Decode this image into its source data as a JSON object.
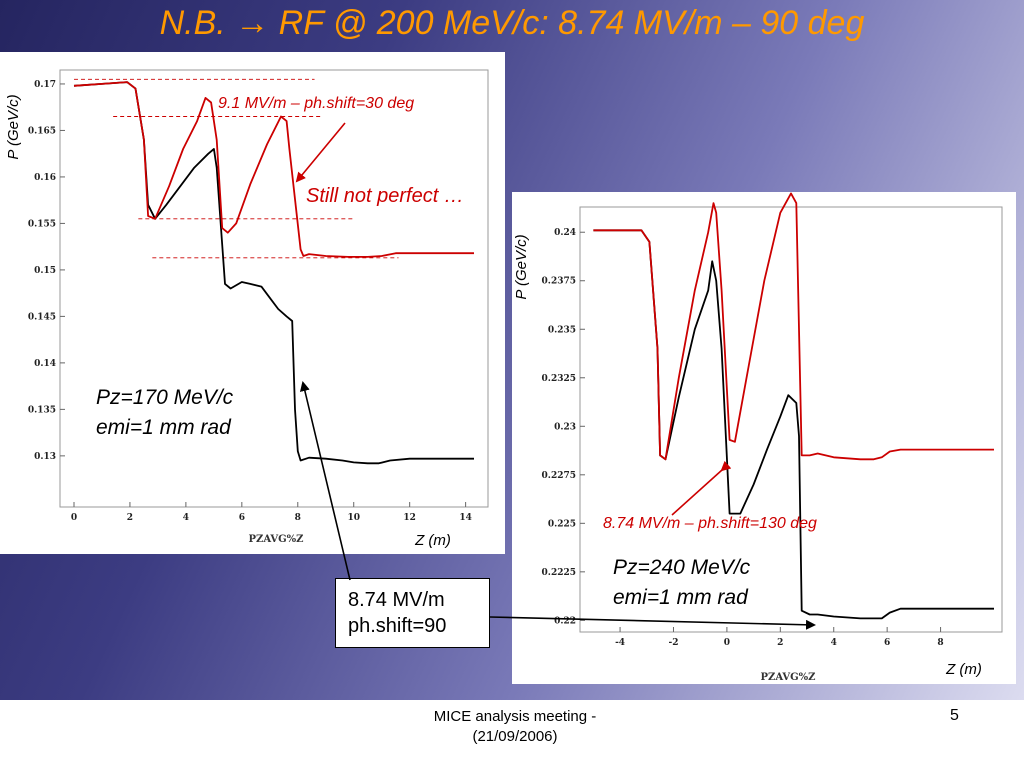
{
  "slide": {
    "title": "N.B. → RF @ 200 MeV/c: 8.74 MV/m – 90 deg",
    "footer_line1": "MICE analysis meeting -",
    "footer_line2": "(21/09/2006)",
    "page_number": "5"
  },
  "annotations": {
    "red_top": "9.1 MV/m – ph.shift=30 deg",
    "still_not_perfect": "Still not perfect …",
    "left_params_1": "Pz=170 MeV/c",
    "left_params_2": "emi=1 mm rad",
    "red_right": "8.74 MV/m – ph.shift=130 deg",
    "right_params_1": "Pz=240 MeV/c",
    "right_params_2": "emi=1 mm rad",
    "callout_1": "8.74 MV/m",
    "callout_2": "ph.shift=90"
  },
  "colors": {
    "title": "#ff9900",
    "red": "#cc0000",
    "black": "#000000"
  },
  "chart_data": [
    {
      "type": "line",
      "ylabel": "P (GeV/c)",
      "xlabel": "Z (m)",
      "axis_code": "PZAVG%Z",
      "xlim": [
        -0.5,
        14.8
      ],
      "ylim": [
        0.1245,
        0.1715
      ],
      "xticks": [
        0,
        2,
        4,
        6,
        8,
        10,
        12,
        14
      ],
      "yticks": [
        0.13,
        0.135,
        0.14,
        0.145,
        0.15,
        0.155,
        0.16,
        0.165,
        0.17
      ],
      "ytick_labels": [
        "0.13",
        "0.135",
        "0.14",
        "0.145",
        "0.15",
        "0.155",
        "0.16",
        "0.165",
        "0.17"
      ],
      "series": [
        {
          "color": "#000000",
          "x": [
            0,
            1,
            1.9,
            2.2,
            2.5,
            2.65,
            2.9,
            3.3,
            3.8,
            4.3,
            4.8,
            5.0,
            5.1,
            5.4,
            5.6,
            6.0,
            6.3,
            6.7,
            7.0,
            7.3,
            7.6,
            7.8,
            7.9,
            8.0,
            8.1,
            8.4,
            9.0,
            9.6,
            10.0,
            10.5,
            10.9,
            11.3,
            12.0,
            13.0,
            14.3
          ],
          "y": [
            0.1698,
            0.17,
            0.1702,
            0.1695,
            0.164,
            0.157,
            0.1555,
            0.157,
            0.159,
            0.161,
            0.1625,
            0.163,
            0.161,
            0.1485,
            0.148,
            0.1487,
            0.1485,
            0.1482,
            0.147,
            0.1458,
            0.145,
            0.1445,
            0.135,
            0.1305,
            0.1295,
            0.1298,
            0.1297,
            0.1295,
            0.1293,
            0.1292,
            0.1292,
            0.1295,
            0.1297,
            0.1297,
            0.1297
          ]
        },
        {
          "color": "#cc0000",
          "x": [
            0,
            1,
            1.9,
            2.2,
            2.5,
            2.65,
            2.9,
            3.4,
            3.9,
            4.4,
            4.7,
            4.9,
            5.1,
            5.3,
            5.5,
            5.8,
            6.3,
            6.9,
            7.4,
            7.6,
            7.7,
            8.1,
            8.2,
            8.4,
            9.0,
            9.8,
            10.5,
            11.0,
            11.5,
            12.5,
            14.3
          ],
          "y": [
            0.1698,
            0.17,
            0.1702,
            0.1695,
            0.164,
            0.1558,
            0.1555,
            0.159,
            0.163,
            0.166,
            0.1685,
            0.168,
            0.164,
            0.1545,
            0.154,
            0.155,
            0.1592,
            0.1635,
            0.1665,
            0.166,
            0.163,
            0.1522,
            0.1515,
            0.1517,
            0.1515,
            0.1514,
            0.1514,
            0.1515,
            0.1518,
            0.1518,
            0.1518
          ]
        }
      ],
      "reference_lines": [
        {
          "y": 0.1705,
          "x": [
            0,
            8.6
          ]
        },
        {
          "y": 0.1665,
          "x": [
            1.4,
            8.8
          ]
        },
        {
          "y": 0.1555,
          "x": [
            2.3,
            10
          ]
        },
        {
          "y": 0.1513,
          "x": [
            2.8,
            11.6
          ]
        }
      ]
    },
    {
      "type": "line",
      "ylabel": "P (GeV/c)",
      "xlabel": "Z (m)",
      "axis_code": "PZAVG%Z",
      "xlim": [
        -5.5,
        10.3
      ],
      "ylim": [
        0.2194,
        0.2413
      ],
      "xticks": [
        -4,
        -2,
        0,
        2,
        4,
        6,
        8
      ],
      "yticks": [
        0.22,
        0.2225,
        0.225,
        0.2275,
        0.23,
        0.2325,
        0.235,
        0.2375,
        0.24
      ],
      "ytick_labels": [
        "0.22",
        "0.2225",
        "0.225",
        "0.2275",
        "0.23",
        "0.2325",
        "0.235",
        "0.2375",
        "0.24"
      ],
      "series": [
        {
          "color": "#000000",
          "x": [
            -5,
            -4,
            -3.2,
            -2.9,
            -2.6,
            -2.5,
            -2.3,
            -1.8,
            -1.2,
            -0.7,
            -0.55,
            -0.4,
            -0.2,
            0.1,
            0.5,
            1.0,
            1.5,
            2.0,
            2.3,
            2.6,
            2.7,
            2.8,
            3.1,
            3.4,
            4.0,
            5.0,
            5.8,
            6.1,
            6.5,
            7.5,
            9.0,
            10.0
          ],
          "y": [
            0.2401,
            0.2401,
            0.2401,
            0.2395,
            0.234,
            0.2285,
            0.2283,
            0.2315,
            0.235,
            0.237,
            0.2385,
            0.2375,
            0.234,
            0.2255,
            0.2255,
            0.227,
            0.2288,
            0.2305,
            0.2316,
            0.2312,
            0.2295,
            0.2205,
            0.2203,
            0.2203,
            0.2202,
            0.2201,
            0.2201,
            0.2204,
            0.2206,
            0.2206,
            0.2206,
            0.2206
          ]
        },
        {
          "color": "#cc0000",
          "x": [
            -5,
            -4,
            -3.2,
            -2.9,
            -2.6,
            -2.5,
            -2.3,
            -1.8,
            -1.2,
            -0.7,
            -0.5,
            -0.4,
            -0.2,
            0.1,
            0.3,
            0.8,
            1.4,
            2.0,
            2.4,
            2.6,
            2.8,
            3.1,
            3.4,
            4.0,
            5.0,
            5.5,
            5.8,
            6.1,
            6.5,
            7.5,
            9.0,
            10.0
          ],
          "y": [
            0.2401,
            0.2401,
            0.2401,
            0.2395,
            0.234,
            0.2285,
            0.2283,
            0.2325,
            0.237,
            0.24,
            0.2415,
            0.241,
            0.237,
            0.2293,
            0.2292,
            0.233,
            0.2375,
            0.241,
            0.242,
            0.2415,
            0.2285,
            0.2285,
            0.2286,
            0.2284,
            0.2283,
            0.2283,
            0.2284,
            0.2287,
            0.2288,
            0.2288,
            0.2288,
            0.2288
          ]
        }
      ]
    }
  ]
}
